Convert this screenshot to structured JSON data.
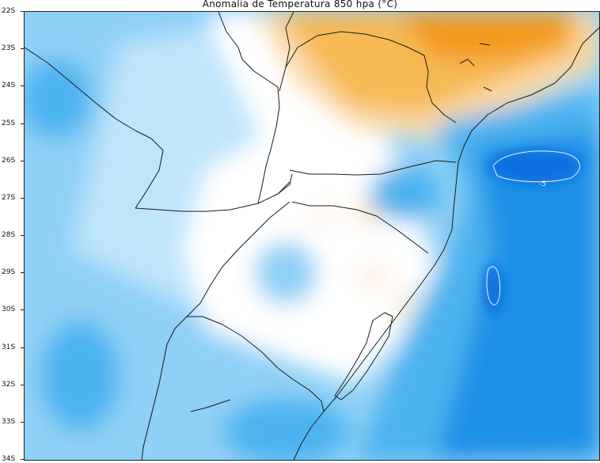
{
  "title": "Anomalia de Temperatura 850 hpa (°C)",
  "latitude_labels": [
    "22S",
    "23S",
    "24S",
    "25S",
    "26S",
    "27S",
    "28S",
    "29S",
    "30S",
    "31S",
    "32S",
    "33S",
    "34S"
  ],
  "contour_labels": [
    "-5"
  ],
  "colors": {
    "warm_strong": "#f39a1c",
    "warm_mid": "#f7b955",
    "warm_light": "#fbdcab",
    "warm_faint": "#fdeedb",
    "neutral": "#ffffff",
    "cool_faint": "#dff2fd",
    "cool_light": "#bfe5fb",
    "cool_mid": "#8fd0f6",
    "cool_strong": "#4bb3f0",
    "cool_deep": "#1a8fe6",
    "cool_deepest": "#0d6fe0",
    "border": "#1a1a1a"
  }
}
